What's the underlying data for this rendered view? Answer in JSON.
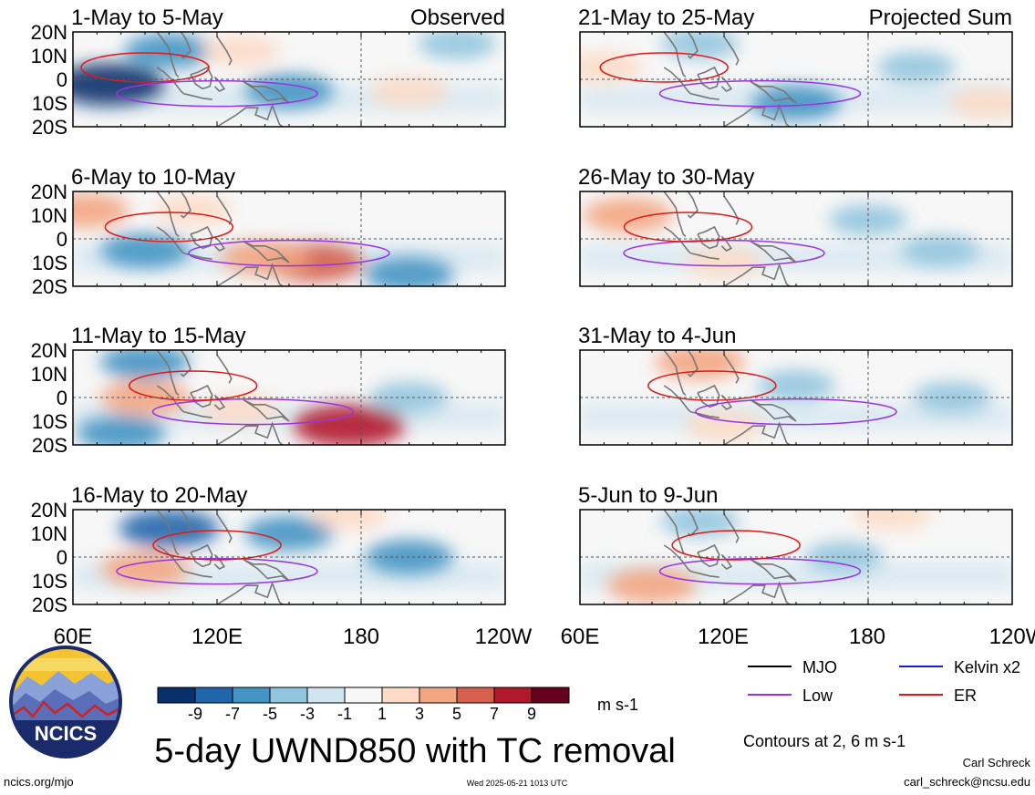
{
  "figure": {
    "title": "5-day UWND850 with TC removal",
    "colorbar_unit": "m s-1",
    "contours_note": "Contours at 2, 6 m s-1",
    "site": "ncics.org/mjo",
    "timestamp": "Wed 2025-05-21 1013 UTC",
    "author": "Carl Schreck",
    "email": "carl_schreck@ncsu.edu",
    "logo_text": "NCICS"
  },
  "legend": [
    {
      "label": "MJO",
      "color": "#000000"
    },
    {
      "label": "Kelvin x2",
      "color": "#1a1adc"
    },
    {
      "label": "Low",
      "color": "#9a33e0"
    },
    {
      "label": "ER",
      "color": "#e01818"
    }
  ],
  "colorbar": {
    "labels": [
      "-9",
      "-7",
      "-5",
      "-3",
      "-1",
      "1",
      "3",
      "5",
      "7",
      "9"
    ],
    "colors": [
      "#08306b",
      "#2166ac",
      "#4393c3",
      "#92c5de",
      "#d1e5f0",
      "#f7f7f7",
      "#fddbc7",
      "#f4a582",
      "#d6604d",
      "#b2182b",
      "#67001f"
    ]
  },
  "chart_data": {
    "type": "heatmap",
    "variable": "850-hPa zonal wind anomaly",
    "units": "m s-1",
    "xticks": [
      "60E",
      "120E",
      "180",
      "120W"
    ],
    "yticks": [
      "20N",
      "10N",
      "0",
      "10S",
      "20S"
    ],
    "xlim_deg": [
      60,
      240
    ],
    "ylim_deg": [
      -20,
      20
    ],
    "panels": [
      {
        "title": "1-May to 5-May",
        "tag": "Observed",
        "column": "left",
        "features": [
          {
            "lon": 75,
            "lat": -2,
            "value": -9
          },
          {
            "lon": 100,
            "lat": 12,
            "value": -5
          },
          {
            "lon": 130,
            "lat": 12,
            "value": 3
          },
          {
            "lon": 200,
            "lat": -5,
            "value": 3
          },
          {
            "lon": 150,
            "lat": -5,
            "value": -5
          },
          {
            "lon": 220,
            "lat": 15,
            "value": -3
          }
        ]
      },
      {
        "title": "21-May to 25-May",
        "tag": "Projected Sum",
        "column": "right",
        "features": [
          {
            "lon": 70,
            "lat": 5,
            "value": 3
          },
          {
            "lon": 150,
            "lat": -10,
            "value": -5
          },
          {
            "lon": 110,
            "lat": 15,
            "value": -3
          },
          {
            "lon": 200,
            "lat": 5,
            "value": -3
          },
          {
            "lon": 230,
            "lat": -10,
            "value": 3
          }
        ]
      },
      {
        "title": "6-May to 10-May",
        "tag": "",
        "column": "left",
        "features": [
          {
            "lon": 65,
            "lat": 12,
            "value": 5
          },
          {
            "lon": 110,
            "lat": 12,
            "value": 3
          },
          {
            "lon": 160,
            "lat": -10,
            "value": 7
          },
          {
            "lon": 140,
            "lat": -8,
            "value": 5
          },
          {
            "lon": 90,
            "lat": -5,
            "value": -5
          },
          {
            "lon": 200,
            "lat": -15,
            "value": -5
          }
        ]
      },
      {
        "title": "26-May to 30-May",
        "tag": "",
        "column": "right",
        "features": [
          {
            "lon": 80,
            "lat": 10,
            "value": 5
          },
          {
            "lon": 120,
            "lat": -10,
            "value": 3
          },
          {
            "lon": 180,
            "lat": 8,
            "value": -3
          },
          {
            "lon": 210,
            "lat": -5,
            "value": -3
          }
        ]
      },
      {
        "title": "11-May to 15-May",
        "tag": "",
        "column": "left",
        "features": [
          {
            "lon": 90,
            "lat": 0,
            "value": 5
          },
          {
            "lon": 175,
            "lat": -12,
            "value": 9
          },
          {
            "lon": 130,
            "lat": -5,
            "value": 3
          },
          {
            "lon": 90,
            "lat": 15,
            "value": -5
          },
          {
            "lon": 200,
            "lat": 0,
            "value": -3
          },
          {
            "lon": 80,
            "lat": -15,
            "value": -5
          }
        ]
      },
      {
        "title": "31-May to 4-Jun",
        "tag": "",
        "column": "right",
        "features": [
          {
            "lon": 110,
            "lat": 15,
            "value": 5
          },
          {
            "lon": 120,
            "lat": -12,
            "value": 3
          },
          {
            "lon": 150,
            "lat": 5,
            "value": -3
          },
          {
            "lon": 215,
            "lat": 0,
            "value": -3
          }
        ]
      },
      {
        "title": "16-May to 20-May",
        "tag": "",
        "column": "left",
        "features": [
          {
            "lon": 90,
            "lat": -5,
            "value": 5
          },
          {
            "lon": 100,
            "lat": 12,
            "value": -7
          },
          {
            "lon": 150,
            "lat": 10,
            "value": -5
          },
          {
            "lon": 200,
            "lat": 0,
            "value": -5
          },
          {
            "lon": 175,
            "lat": 18,
            "value": 3
          }
        ]
      },
      {
        "title": "5-Jun to 9-Jun",
        "tag": "",
        "column": "right",
        "features": [
          {
            "lon": 90,
            "lat": -12,
            "value": 5
          },
          {
            "lon": 110,
            "lat": 15,
            "value": -3
          },
          {
            "lon": 170,
            "lat": 0,
            "value": -3
          },
          {
            "lon": 190,
            "lat": 18,
            "value": 3
          }
        ]
      }
    ]
  }
}
